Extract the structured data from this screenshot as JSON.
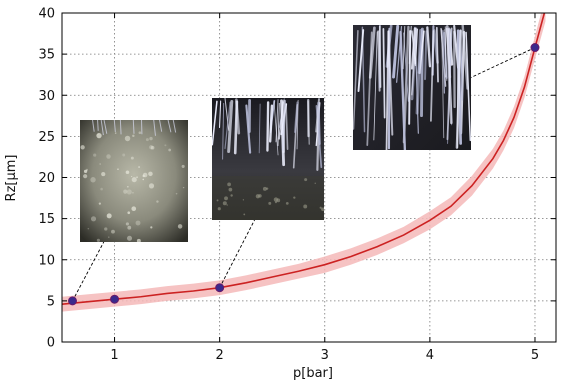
{
  "chart_data": {
    "type": "scatter",
    "title": "",
    "xlabel": "p[bar]",
    "ylabel": "Rz[µm]",
    "xlim": [
      0.5,
      5.2
    ],
    "ylim": [
      0,
      40
    ],
    "xticks": [
      1,
      2,
      3,
      4,
      5
    ],
    "yticks": [
      0,
      5,
      10,
      15,
      20,
      25,
      30,
      35,
      40
    ],
    "grid": true,
    "points": [
      {
        "x": 0.6,
        "y": 5.0
      },
      {
        "x": 1.0,
        "y": 5.2
      },
      {
        "x": 2.0,
        "y": 6.6
      },
      {
        "x": 5.0,
        "y": 35.8
      }
    ],
    "fit_curve": {
      "x": [
        0.5,
        0.75,
        1.0,
        1.25,
        1.5,
        1.75,
        2.0,
        2.25,
        2.5,
        2.75,
        3.0,
        3.25,
        3.5,
        3.75,
        4.0,
        4.2,
        4.4,
        4.6,
        4.7,
        4.8,
        4.9,
        5.0,
        5.1
      ],
      "y": [
        4.6,
        4.9,
        5.2,
        5.5,
        5.9,
        6.2,
        6.6,
        7.2,
        7.9,
        8.6,
        9.4,
        10.4,
        11.6,
        13.0,
        14.8,
        16.5,
        19.0,
        22.3,
        24.5,
        27.3,
        31.0,
        35.8,
        40.5
      ],
      "band_halfwidth": [
        0.9,
        0.9,
        0.9,
        0.9,
        0.9,
        0.9,
        0.9,
        0.9,
        0.9,
        0.9,
        1.0,
        1.0,
        1.0,
        1.0,
        1.1,
        1.1,
        1.2,
        1.2,
        1.2,
        1.3,
        1.3,
        1.4,
        1.5
      ]
    },
    "insets": [
      {
        "name": "inset-p0-6",
        "anchor_x": 0.6,
        "anchor_y": 5.0,
        "texture": "foggy"
      },
      {
        "name": "inset-p2",
        "anchor_x": 2.0,
        "anchor_y": 6.6,
        "texture": "streaked"
      },
      {
        "name": "inset-p5",
        "anchor_x": 5.0,
        "anchor_y": 35.8,
        "texture": "dense-streaked"
      }
    ],
    "colors": {
      "curve": "#cc2222",
      "band": "#f4b8b8",
      "point_fill": "#3a2a8c",
      "point_stroke": "#6a1a6a",
      "grid": "#777777",
      "axis": "#000000"
    }
  }
}
